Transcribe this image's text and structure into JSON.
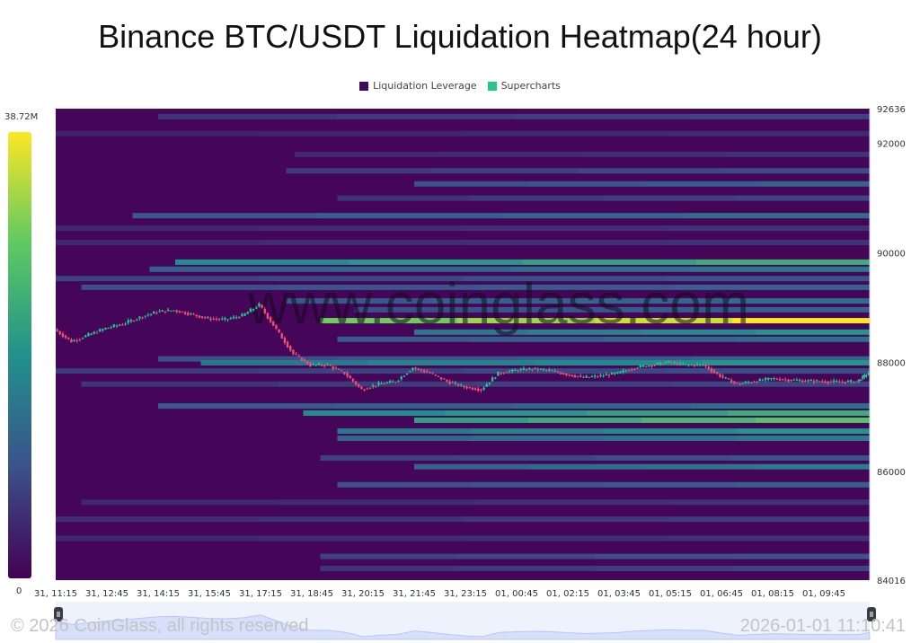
{
  "chart_data": {
    "type": "heatmap",
    "title": "Binance BTC/USDT Liquidation Heatmap(24 hour)",
    "legend": [
      {
        "label": "Liquidation Leverage",
        "color": "#3d0a5c"
      },
      {
        "label": "Supercharts",
        "color": "#22c98a"
      }
    ],
    "legend_position": "top",
    "colorbar": {
      "max_label": "38.72M",
      "min_label": "0",
      "max": 38.72,
      "min": 0,
      "colormap": "viridis"
    },
    "y_axis": {
      "position": "right",
      "range": [
        84016,
        92636
      ],
      "ticks": [
        "92636",
        "92000",
        "90000",
        "88000",
        "86000",
        "84016"
      ]
    },
    "x_axis": {
      "ticks": [
        "31, 11:15",
        "31, 12:45",
        "31, 14:15",
        "31, 15:45",
        "31, 17:15",
        "31, 18:45",
        "31, 20:15",
        "31, 21:45",
        "31, 23:15",
        "01, 00:45",
        "01, 02:15",
        "01, 03:45",
        "01, 05:15",
        "01, 06:45",
        "01, 08:15",
        "01, 09:45"
      ],
      "range": [
        "31, 11:15",
        "01, 11:05"
      ]
    },
    "bands": [
      {
        "price": 92490,
        "from": "31, 14:15",
        "value": 8
      },
      {
        "price": 92180,
        "from": "31, 11:15",
        "value": 5
      },
      {
        "price": 91800,
        "from": "31, 18:15",
        "value": 6
      },
      {
        "price": 91500,
        "from": "31, 18:00",
        "value": 9
      },
      {
        "price": 91260,
        "from": "31, 21:45",
        "value": 12
      },
      {
        "price": 91000,
        "from": "31, 19:30",
        "value": 8
      },
      {
        "price": 90680,
        "from": "31, 13:30",
        "value": 14
      },
      {
        "price": 90450,
        "from": "31, 11:15",
        "value": 6
      },
      {
        "price": 90190,
        "from": "31, 11:15",
        "value": 6
      },
      {
        "price": 89830,
        "from": "31, 14:45",
        "value": 24
      },
      {
        "price": 89700,
        "from": "31, 14:00",
        "value": 15
      },
      {
        "price": 89530,
        "from": "31, 11:15",
        "value": 10
      },
      {
        "price": 89370,
        "from": "31, 12:00",
        "value": 12
      },
      {
        "price": 89120,
        "from": "31, 18:00",
        "value": 14
      },
      {
        "price": 88960,
        "from": "31, 20:00",
        "value": 12
      },
      {
        "price": 88760,
        "from": "31, 19:00",
        "value": 38.72
      },
      {
        "price": 88550,
        "from": "31, 21:45",
        "value": 20
      },
      {
        "price": 88420,
        "from": "31, 19:30",
        "value": 14
      },
      {
        "price": 88060,
        "from": "31, 14:15",
        "value": 12
      },
      {
        "price": 87990,
        "from": "31, 15:30",
        "value": 20
      },
      {
        "price": 87840,
        "from": "31, 11:15",
        "value": 9
      },
      {
        "price": 87600,
        "from": "31, 12:00",
        "value": 8
      },
      {
        "price": 87200,
        "from": "31, 14:15",
        "value": 14
      },
      {
        "price": 87070,
        "from": "31, 18:30",
        "value": 24
      },
      {
        "price": 86940,
        "from": "31, 21:45",
        "value": 28
      },
      {
        "price": 86740,
        "from": "31, 19:30",
        "value": 20
      },
      {
        "price": 86610,
        "from": "31, 19:30",
        "value": 16
      },
      {
        "price": 86250,
        "from": "31, 19:00",
        "value": 10
      },
      {
        "price": 86090,
        "from": "31, 21:45",
        "value": 16
      },
      {
        "price": 85760,
        "from": "31, 19:30",
        "value": 12
      },
      {
        "price": 85440,
        "from": "31, 12:00",
        "value": 6
      },
      {
        "price": 85130,
        "from": "31, 11:15",
        "value": 7
      },
      {
        "price": 84780,
        "from": "31, 11:15",
        "value": 6
      },
      {
        "price": 84450,
        "from": "31, 19:00",
        "value": 10
      },
      {
        "price": 84230,
        "from": "31, 19:00",
        "value": 8
      }
    ],
    "price_series": {
      "interval_minutes": 30,
      "start": "31, 11:15",
      "values": [
        88600,
        88380,
        88500,
        88620,
        88700,
        88820,
        88920,
        88950,
        88880,
        88800,
        88780,
        88850,
        89050,
        88600,
        88150,
        87950,
        87950,
        87800,
        87500,
        87600,
        87650,
        87900,
        87800,
        87650,
        87550,
        87500,
        87800,
        87850,
        87880,
        87850,
        87780,
        87720,
        87750,
        87800,
        87900,
        87950,
        88000,
        87950,
        87950,
        87750,
        87600,
        87650,
        87700,
        87680,
        87660,
        87650,
        87640,
        87650,
        87800
      ],
      "up_color": "#1fc98e",
      "down_color": "#f0506e"
    },
    "watermark": "www.coinglass.com"
  },
  "footer": {
    "copyright": "© 2026 CoinGlass, all rights reserved",
    "timestamp": "2026-01-01 11:10:41"
  }
}
